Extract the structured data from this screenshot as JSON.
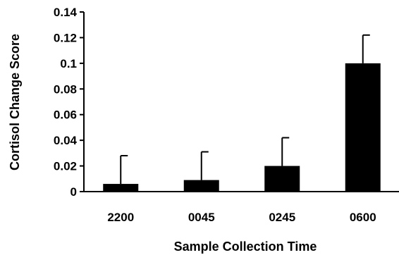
{
  "chart_data": {
    "type": "bar",
    "title": "",
    "xlabel": "Sample Collection Time",
    "ylabel": "Cortisol Change Score",
    "categories": [
      "2200",
      "0045",
      "0245",
      "0600"
    ],
    "values": [
      0.006,
      0.009,
      0.02,
      0.1
    ],
    "error_plus": [
      0.022,
      0.022,
      0.022,
      0.022
    ],
    "ylim": [
      0,
      0.14
    ],
    "yticks": [
      0,
      0.02,
      0.04,
      0.06,
      0.08,
      0.1,
      0.12,
      0.14
    ],
    "ytick_labels": [
      "0",
      "0.02",
      "0.04",
      "0.06",
      "0.08",
      "0.1",
      "0.12",
      "0.14"
    ],
    "grid": false,
    "legend": "none",
    "bar_color": "#000000"
  }
}
